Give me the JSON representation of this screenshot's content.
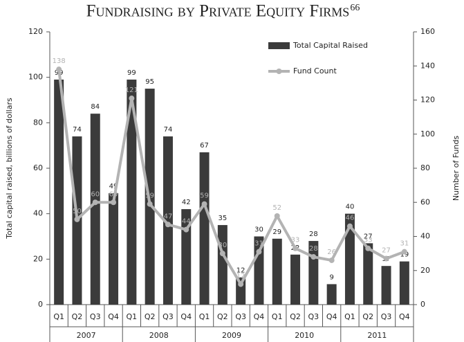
{
  "chart_data": {
    "type": "bar_line",
    "title": "Fundraising by Private Equity Firms",
    "title_superscript": "66",
    "y_label": "Total capital raised, billions of dollars",
    "y2_label": "Number of Funds",
    "categories": [
      "Q1",
      "Q2",
      "Q3",
      "Q4",
      "Q1",
      "Q2",
      "Q3",
      "Q4",
      "Q1",
      "Q2",
      "Q3",
      "Q4",
      "Q1",
      "Q2",
      "Q3",
      "Q4",
      "Q1",
      "Q2",
      "Q3",
      "Q4"
    ],
    "category_groups": [
      "2007",
      "2008",
      "2009",
      "2010",
      "2011"
    ],
    "series": [
      {
        "name": "Total Capital Raised",
        "kind": "bar",
        "color": "#3b3b3b",
        "values": [
          99,
          74,
          84,
          49,
          99,
          95,
          74,
          42,
          67,
          35,
          12,
          30,
          29,
          22,
          28,
          9,
          40,
          27,
          17,
          19
        ]
      },
      {
        "name": "Fund Count",
        "kind": "line",
        "axis": "y2",
        "color": "#b3b3b3",
        "values": [
          138,
          50,
          60,
          60,
          121,
          59,
          47,
          44,
          59,
          30,
          12,
          31,
          52,
          33,
          28,
          26,
          46,
          33,
          27,
          31
        ]
      }
    ],
    "ylim": [
      0,
      120
    ],
    "yticks": [
      0,
      20,
      40,
      60,
      80,
      100,
      120
    ],
    "y2lim": [
      0,
      160
    ],
    "y2ticks": [
      0,
      20,
      40,
      60,
      80,
      100,
      120,
      140,
      160
    ],
    "legend": "top-right"
  }
}
